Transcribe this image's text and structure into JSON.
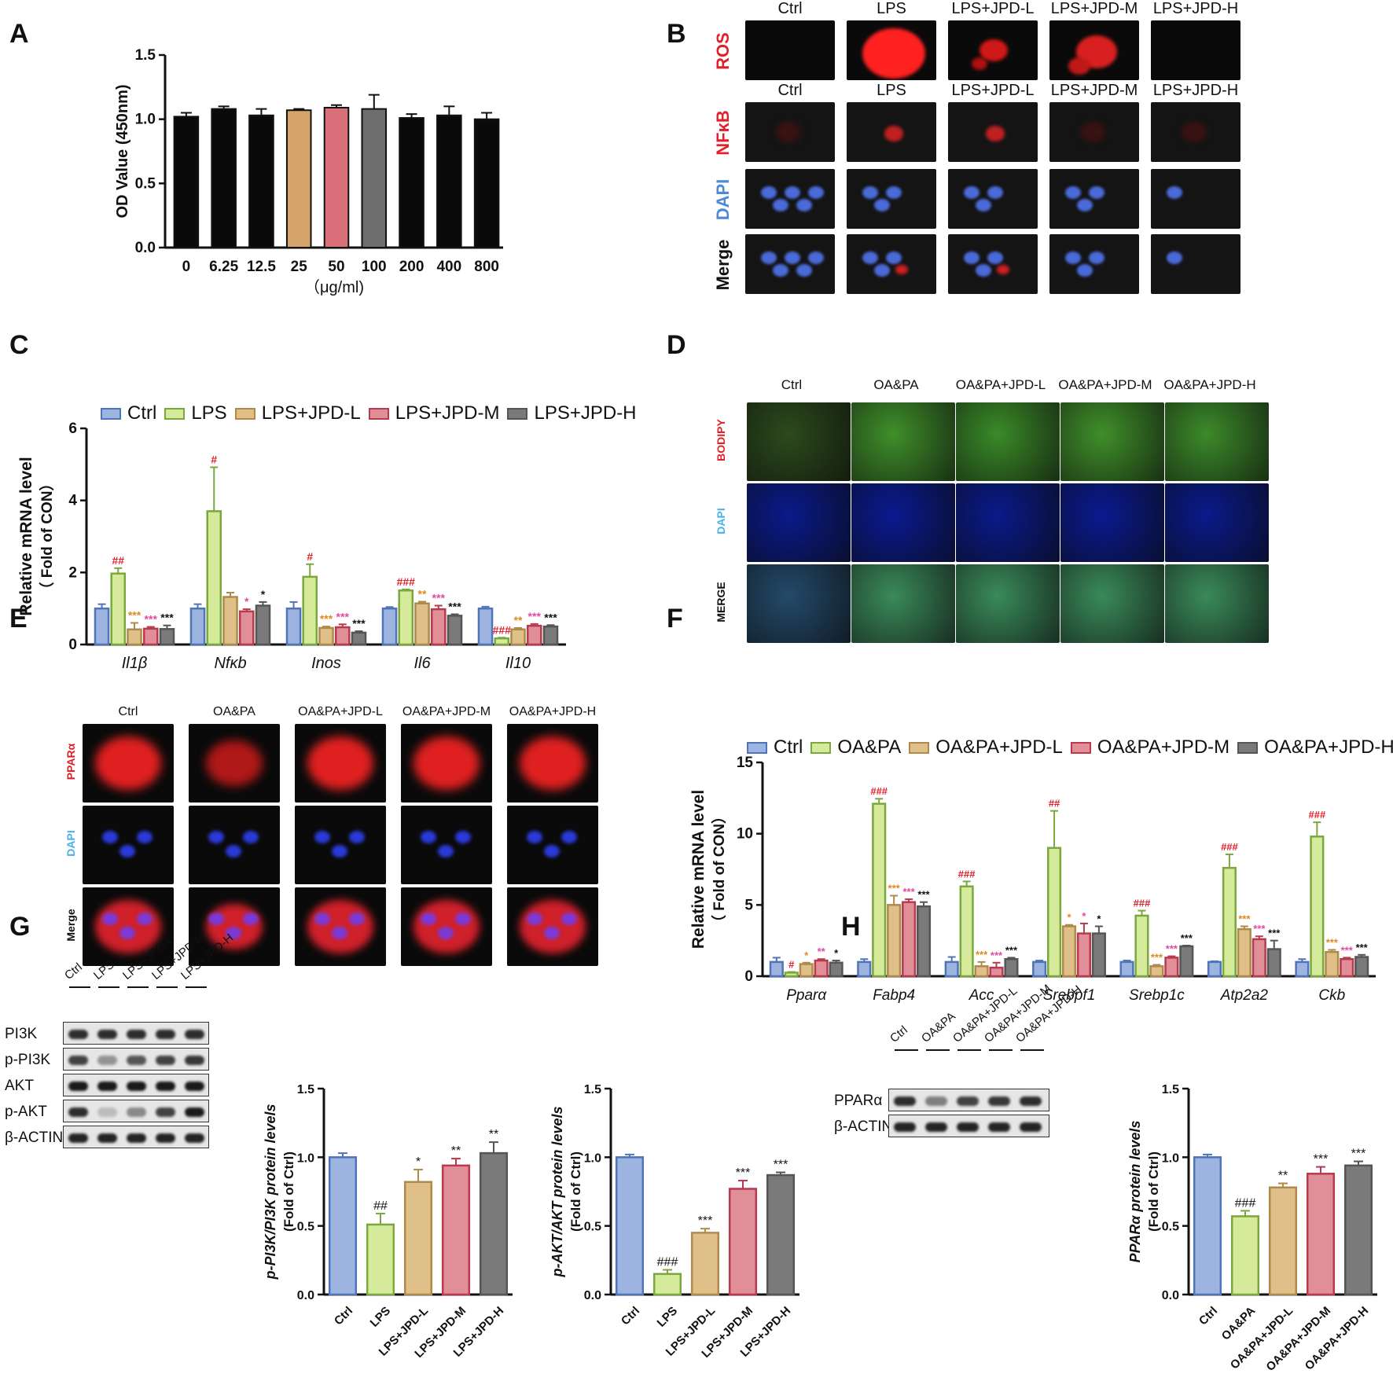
{
  "panels": {
    "A": "A",
    "B": "B",
    "C": "C",
    "D": "D",
    "E": "E",
    "F": "F",
    "G": "G",
    "H": "H"
  },
  "colors": {
    "ctrl": "#4f74b8",
    "lps": "#7aa83e",
    "jpdL": "#b08a4a",
    "jpdM": "#b83a4c",
    "jpdH": "#555555",
    "sig_red": "#e0202a",
    "sig_orange": "#e08a1c",
    "sig_pink": "#e04aa0",
    "sig_black": "#111111"
  },
  "chart_data": [
    {
      "id": "A",
      "type": "bar",
      "categories": [
        "0",
        "6.25",
        "12.5",
        "25",
        "50",
        "100",
        "200",
        "400",
        "800"
      ],
      "values": [
        1.02,
        1.08,
        1.03,
        1.07,
        1.09,
        1.08,
        1.01,
        1.03,
        1.0
      ],
      "errors": [
        0.03,
        0.02,
        0.05,
        0.01,
        0.02,
        0.11,
        0.03,
        0.07,
        0.05
      ],
      "bar_colors": [
        "#0a0a0a",
        "#0a0a0a",
        "#0a0a0a",
        "#d4a46a",
        "#d9707a",
        "#6e6e6e",
        "#0a0a0a",
        "#0a0a0a",
        "#0a0a0a"
      ],
      "ylabel": "OD Value (450nm)",
      "xlabel": "（μg/ml)",
      "ylim": [
        0,
        1.5
      ],
      "yticks": [
        "0.0",
        "0.5",
        "1.0",
        "1.5"
      ]
    },
    {
      "id": "C",
      "type": "bar",
      "categories": [
        "Il1β",
        "Nfκb",
        "Inos",
        "Il6",
        "Il10"
      ],
      "series": [
        {
          "name": "Ctrl",
          "values": [
            1.0,
            1.0,
            1.0,
            1.0,
            1.0
          ],
          "errors": [
            0.12,
            0.12,
            0.18,
            0.04,
            0.05
          ]
        },
        {
          "name": "LPS",
          "values": [
            1.97,
            3.7,
            1.88,
            1.5,
            0.17
          ],
          "errors": [
            0.15,
            1.22,
            0.35,
            0.03,
            0.02
          ]
        },
        {
          "name": "LPS+JPD-L",
          "values": [
            0.42,
            1.32,
            0.46,
            1.14,
            0.42
          ],
          "errors": [
            0.18,
            0.12,
            0.04,
            0.05,
            0.04
          ]
        },
        {
          "name": "LPS+JPD-M",
          "values": [
            0.44,
            0.92,
            0.48,
            0.98,
            0.52
          ],
          "errors": [
            0.05,
            0.06,
            0.08,
            0.1,
            0.05
          ]
        },
        {
          "name": "LPS+JPD-H",
          "values": [
            0.43,
            1.08,
            0.33,
            0.8,
            0.5
          ],
          "errors": [
            0.1,
            0.1,
            0.04,
            0.04,
            0.04
          ]
        }
      ],
      "sig": [
        [
          "",
          "##",
          "***",
          "***",
          "***"
        ],
        [
          "",
          "#",
          "",
          "*",
          "*"
        ],
        [
          "",
          "#",
          "***",
          "***",
          "***"
        ],
        [
          "",
          "###",
          "**",
          "***",
          "***"
        ],
        [
          "",
          "###",
          "**",
          "***",
          "***"
        ]
      ],
      "ylabel": "Relative mRNA level",
      "ylabel2": "（ Fold of CON）",
      "ylim": [
        0,
        6
      ],
      "yticks": [
        "0",
        "2",
        "4",
        "6"
      ]
    },
    {
      "id": "F",
      "type": "bar",
      "categories": [
        "Pparα",
        "Fabp4",
        "Acc",
        "Srebpf1",
        "Srebp1c",
        "Atp2a2",
        "Ckb"
      ],
      "series": [
        {
          "name": "Ctrl",
          "values": [
            1.0,
            1.0,
            1.0,
            1.0,
            1.0,
            1.0,
            1.0
          ],
          "errors": [
            0.3,
            0.2,
            0.35,
            0.1,
            0.1,
            0.05,
            0.2
          ]
        },
        {
          "name": "OA&PA",
          "values": [
            0.25,
            12.1,
            6.3,
            9.0,
            4.25,
            7.6,
            9.8
          ],
          "errors": [
            0.05,
            0.35,
            0.35,
            2.6,
            0.35,
            0.95,
            1.0
          ]
        },
        {
          "name": "OA&PA+JPD-L",
          "values": [
            0.85,
            5.0,
            0.7,
            3.5,
            0.7,
            3.3,
            1.7
          ],
          "errors": [
            0.1,
            0.65,
            0.3,
            0.1,
            0.1,
            0.2,
            0.15
          ]
        },
        {
          "name": "OA&PA+JPD-M",
          "values": [
            1.1,
            5.2,
            0.6,
            3.0,
            1.3,
            2.6,
            1.2
          ],
          "errors": [
            0.1,
            0.2,
            0.35,
            0.7,
            0.1,
            0.2,
            0.1
          ]
        },
        {
          "name": "OA&PA+JPD-H",
          "values": [
            0.95,
            4.9,
            1.2,
            3.0,
            2.1,
            1.9,
            1.35
          ],
          "errors": [
            0.15,
            0.3,
            0.1,
            0.5,
            0.05,
            0.6,
            0.15
          ]
        }
      ],
      "sig": [
        [
          "",
          "#",
          "*",
          "**",
          "*"
        ],
        [
          "",
          "###",
          "***",
          "***",
          "***"
        ],
        [
          "",
          "###",
          "***",
          "***",
          "***"
        ],
        [
          "",
          "##",
          "*",
          "*",
          "*"
        ],
        [
          "",
          "###",
          "***",
          "***",
          "***"
        ],
        [
          "",
          "###",
          "***",
          "***",
          "***"
        ],
        [
          "",
          "###",
          "***",
          "***",
          "***"
        ]
      ],
      "ylabel": "Relative mRNA level",
      "ylabel2": "（ Fold of CON）",
      "ylim": [
        0,
        15
      ],
      "yticks": [
        "0",
        "5",
        "10",
        "15"
      ]
    },
    {
      "id": "G1",
      "type": "bar",
      "categories": [
        "Ctrl",
        "LPS",
        "LPS+JPD-L",
        "LPS+JPD-M",
        "LPS+JPD-H"
      ],
      "values": [
        1.0,
        0.51,
        0.82,
        0.94,
        1.03
      ],
      "errors": [
        0.03,
        0.08,
        0.09,
        0.05,
        0.08
      ],
      "sig": [
        "",
        "##",
        "*",
        "**",
        "**"
      ],
      "ylabel": "p-PI3K/PI3K protein levels",
      "ylabel2": "(Fold of Ctrl)",
      "ylim": [
        0,
        1.5
      ],
      "yticks": [
        "0.0",
        "0.5",
        "1.0",
        "1.5"
      ]
    },
    {
      "id": "G2",
      "type": "bar",
      "categories": [
        "Ctrl",
        "LPS",
        "LPS+JPD-L",
        "LPS+JPD-M",
        "LPS+JPD-H"
      ],
      "values": [
        1.0,
        0.15,
        0.45,
        0.77,
        0.87
      ],
      "errors": [
        0.02,
        0.03,
        0.03,
        0.06,
        0.02
      ],
      "sig": [
        "",
        "###",
        "***",
        "***",
        "***"
      ],
      "ylabel": "p-AKT/AKT protein levels",
      "ylabel2": "(Fold of Ctrl)",
      "ylim": [
        0,
        1.5
      ],
      "yticks": [
        "0.0",
        "0.5",
        "1.0",
        "1.5"
      ]
    },
    {
      "id": "H",
      "type": "bar",
      "categories": [
        "Ctrl",
        "OA&PA",
        "OA&PA+JPD-L",
        "OA&PA+JPD-M",
        "OA&PA+JPD-H"
      ],
      "values": [
        1.0,
        0.57,
        0.78,
        0.88,
        0.94
      ],
      "errors": [
        0.02,
        0.04,
        0.03,
        0.05,
        0.03
      ],
      "sig": [
        "",
        "###",
        "**",
        "***",
        "***"
      ],
      "ylabel": "PPARα protein levels",
      "ylabel2": "(Fold of Ctrl)",
      "ylim": [
        0,
        1.5
      ],
      "yticks": [
        "0.0",
        "0.5",
        "1.0",
        "1.5"
      ]
    }
  ],
  "legendC": [
    "Ctrl",
    "LPS",
    "LPS+JPD-L",
    "LPS+JPD-M",
    "LPS+JPD-H"
  ],
  "legendF": [
    "Ctrl",
    "OA&PA",
    "OA&PA+JPD-L",
    "OA&PA+JPD-M",
    "OA&PA+JPD-H"
  ],
  "imgB": {
    "cols_top": [
      "Ctrl",
      "LPS",
      "LPS+JPD-L",
      "LPS+JPD-M",
      "LPS+JPD-H"
    ],
    "cols_bottom": [
      "Ctrl",
      "LPS",
      "LPS+JPD-L",
      "LPS+JPD-M",
      "LPS+JPD-H"
    ],
    "rows": [
      "ROS",
      "NFκB",
      "DAPI",
      "Merge"
    ]
  },
  "imgD": {
    "cols": [
      "Ctrl",
      "OA&PA",
      "OA&PA+JPD-L",
      "OA&PA+JPD-M",
      "OA&PA+JPD-H"
    ],
    "rows": [
      "BODIPY",
      "DAPI",
      "MERGE"
    ]
  },
  "imgE": {
    "cols": [
      "Ctrl",
      "OA&PA",
      "OA&PA+JPD-L",
      "OA&PA+JPD-M",
      "OA&PA+JPD-H"
    ],
    "rows": [
      "PPARα",
      "DAPI",
      "Merge"
    ]
  },
  "blotG": {
    "lanes": [
      "Ctrl",
      "LPS",
      "LPS+JPD-L",
      "LPS+JPD-M",
      "LPS+JPD-H"
    ],
    "rows": [
      "PI3K",
      "p-PI3K",
      "AKT",
      "p-AKT",
      "β-ACTIN"
    ]
  },
  "blotH": {
    "lanes": [
      "Ctrl",
      "OA&PA",
      "OA&PA+JPD-L",
      "OA&PA+JPD-M",
      "OA&PA+JPD-H"
    ],
    "rows": [
      "PPARα",
      "β-ACTIN"
    ]
  }
}
